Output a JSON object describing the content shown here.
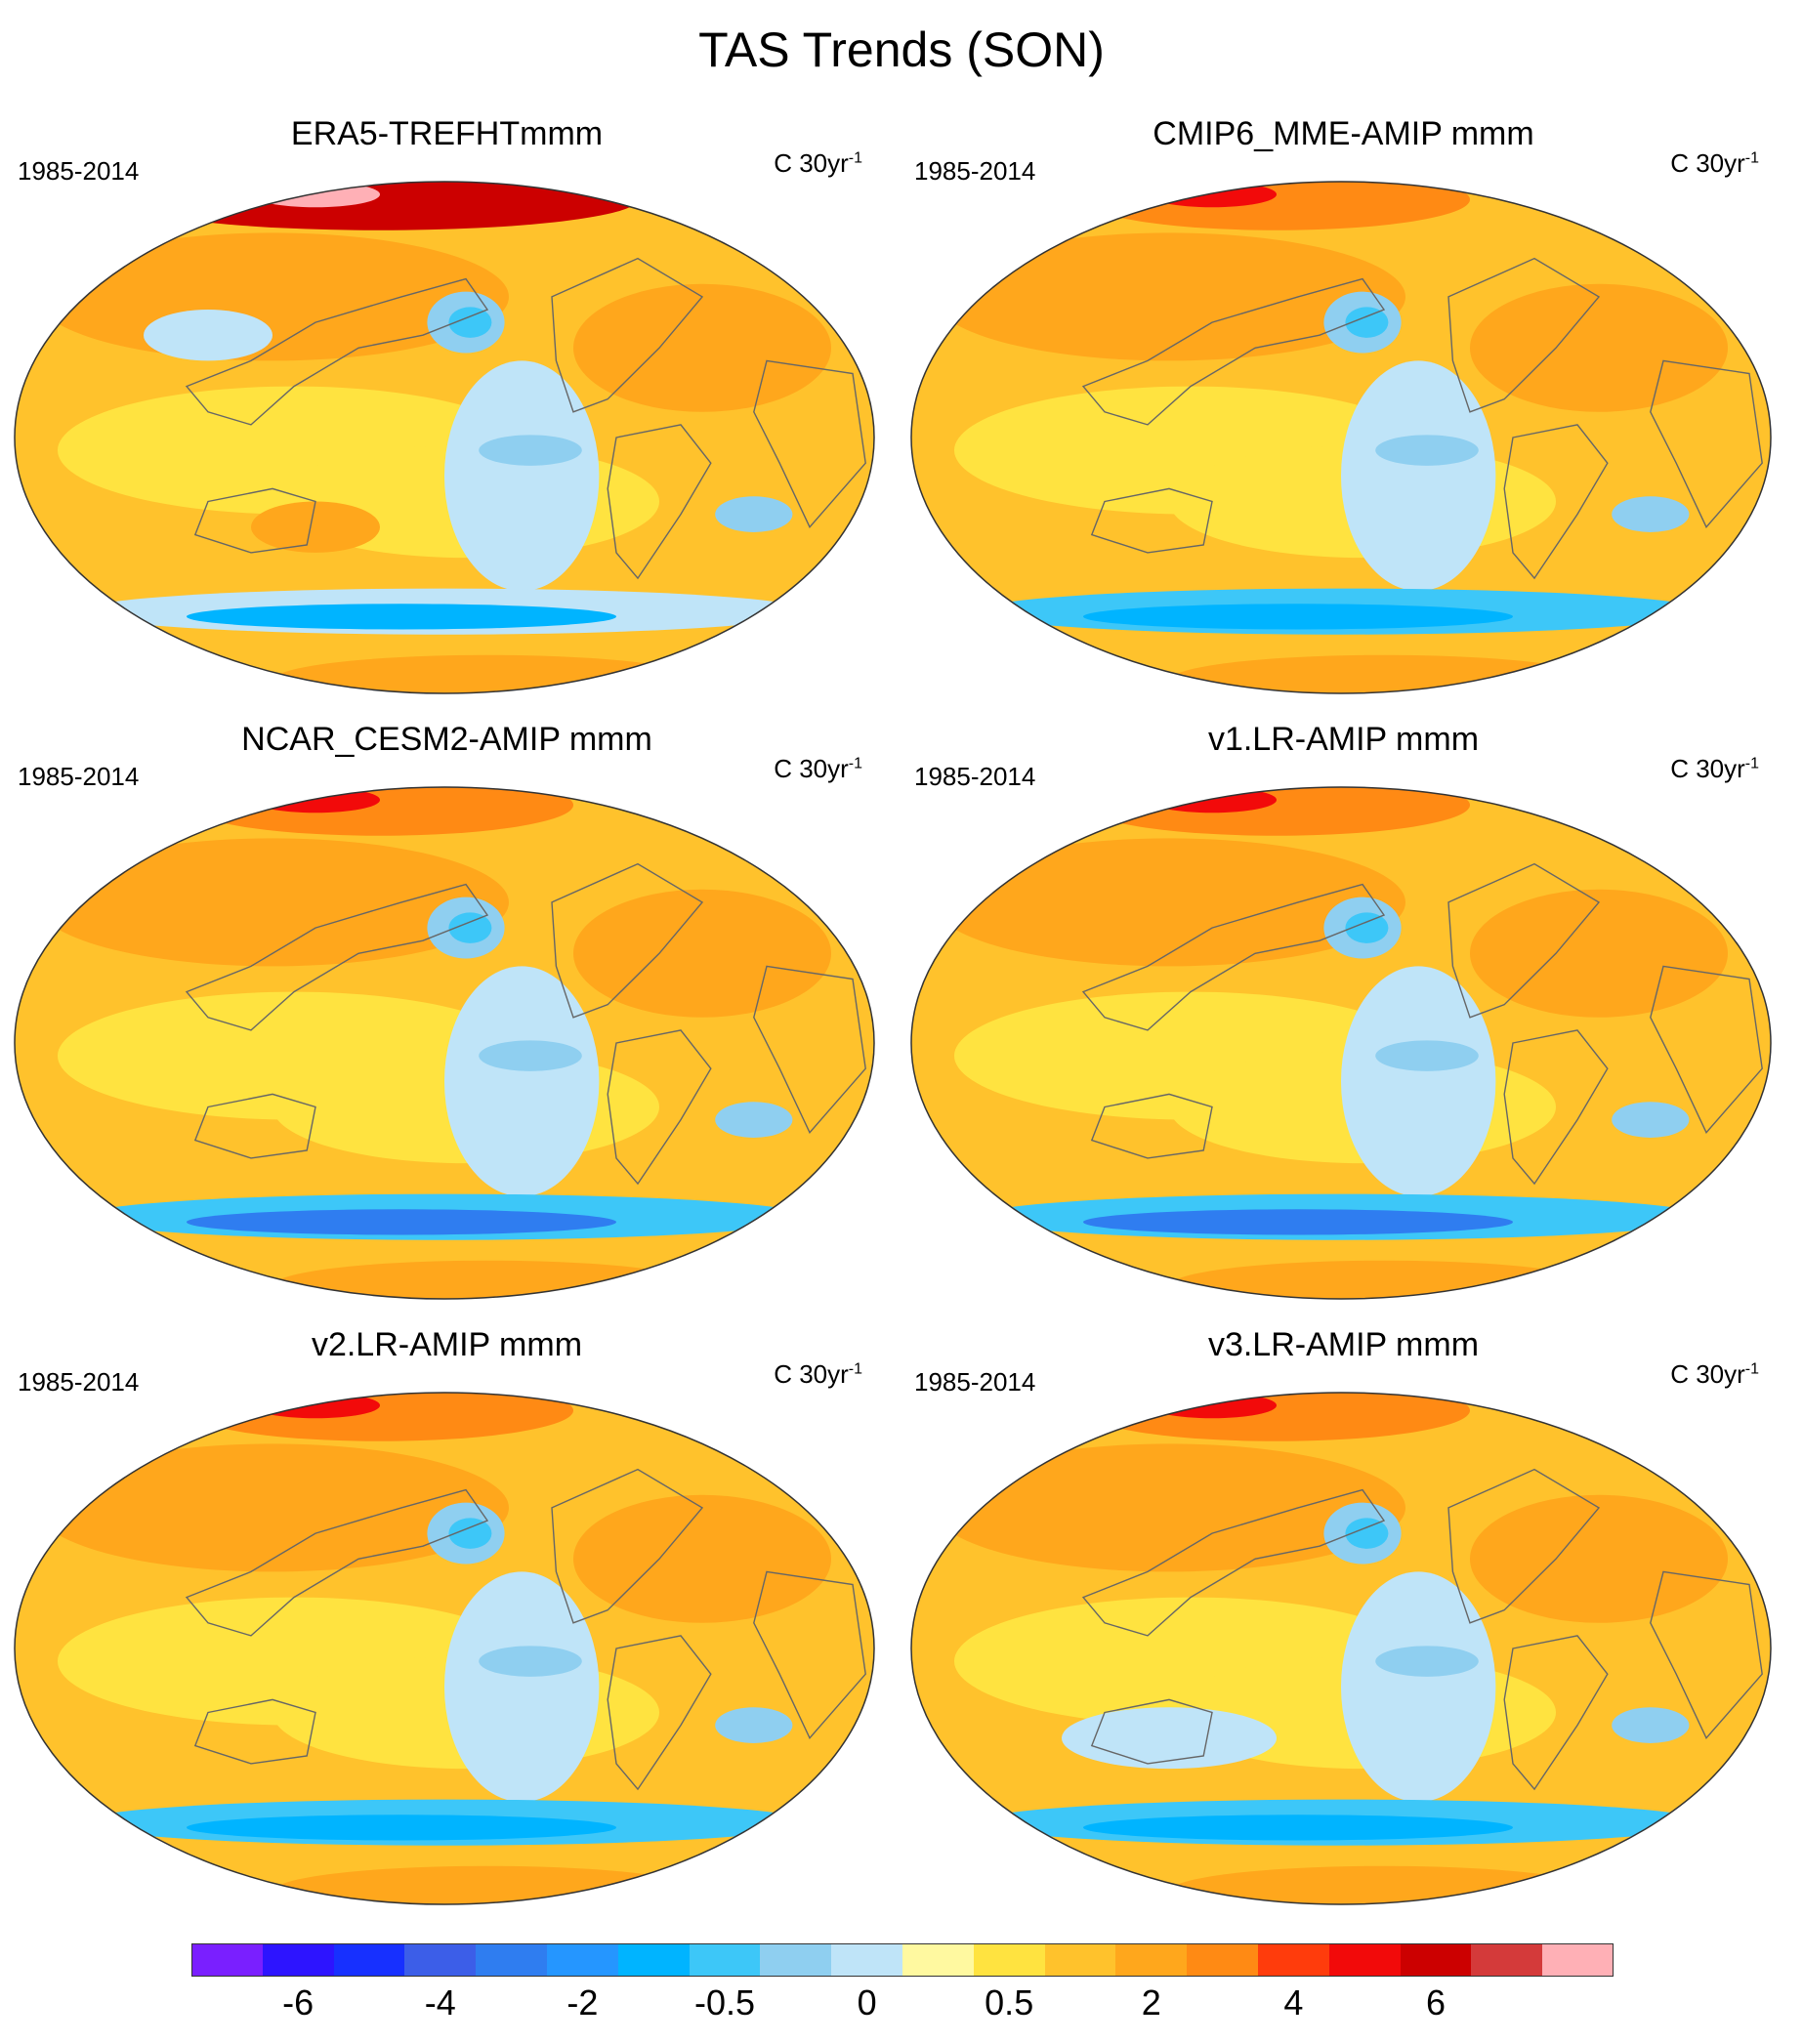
{
  "title": "TAS Trends (SON)",
  "panels": [
    {
      "title": "ERA5-TREFHTmmm",
      "period": "1985-2014",
      "units": "C 30yr",
      "units_sup": "-1",
      "variant": "era5"
    },
    {
      "title": "CMIP6_MME-AMIP  mmm",
      "period": "1985-2014",
      "units": "C 30yr",
      "units_sup": "-1",
      "variant": "mme"
    },
    {
      "title": "NCAR_CESM2-AMIP  mmm",
      "period": "1985-2014",
      "units": "C 30yr",
      "units_sup": "-1",
      "variant": "cesm"
    },
    {
      "title": "v1.LR-AMIP  mmm",
      "period": "1985-2014",
      "units": "C 30yr",
      "units_sup": "-1",
      "variant": "v1"
    },
    {
      "title": "v2.LR-AMIP  mmm",
      "period": "1985-2014",
      "units": "C 30yr",
      "units_sup": "-1",
      "variant": "v2"
    },
    {
      "title": "v3.LR-AMIP  mmm",
      "period": "1985-2014",
      "units": "C 30yr",
      "units_sup": "-1",
      "variant": "v3"
    }
  ],
  "colorbar": {
    "colors": [
      "#7a1fff",
      "#2d14ff",
      "#1730ff",
      "#3c5ee8",
      "#2f7df0",
      "#2596ff",
      "#00b4ff",
      "#3dc7f8",
      "#8fcff0",
      "#bfe4f8",
      "#fff9a0",
      "#ffe340",
      "#ffc22c",
      "#ffa71c",
      "#ff8a14",
      "#ff3c0c",
      "#f20a0a",
      "#cc0000",
      "#d43a3a",
      "#ffb0b6"
    ],
    "labels": [
      "-6",
      "-4",
      "-2",
      "-0.5",
      "0",
      "0.5",
      "2",
      "4",
      "6"
    ],
    "label_boundaries": [
      2,
      4,
      6,
      8,
      10,
      12,
      14,
      16,
      18
    ]
  }
}
